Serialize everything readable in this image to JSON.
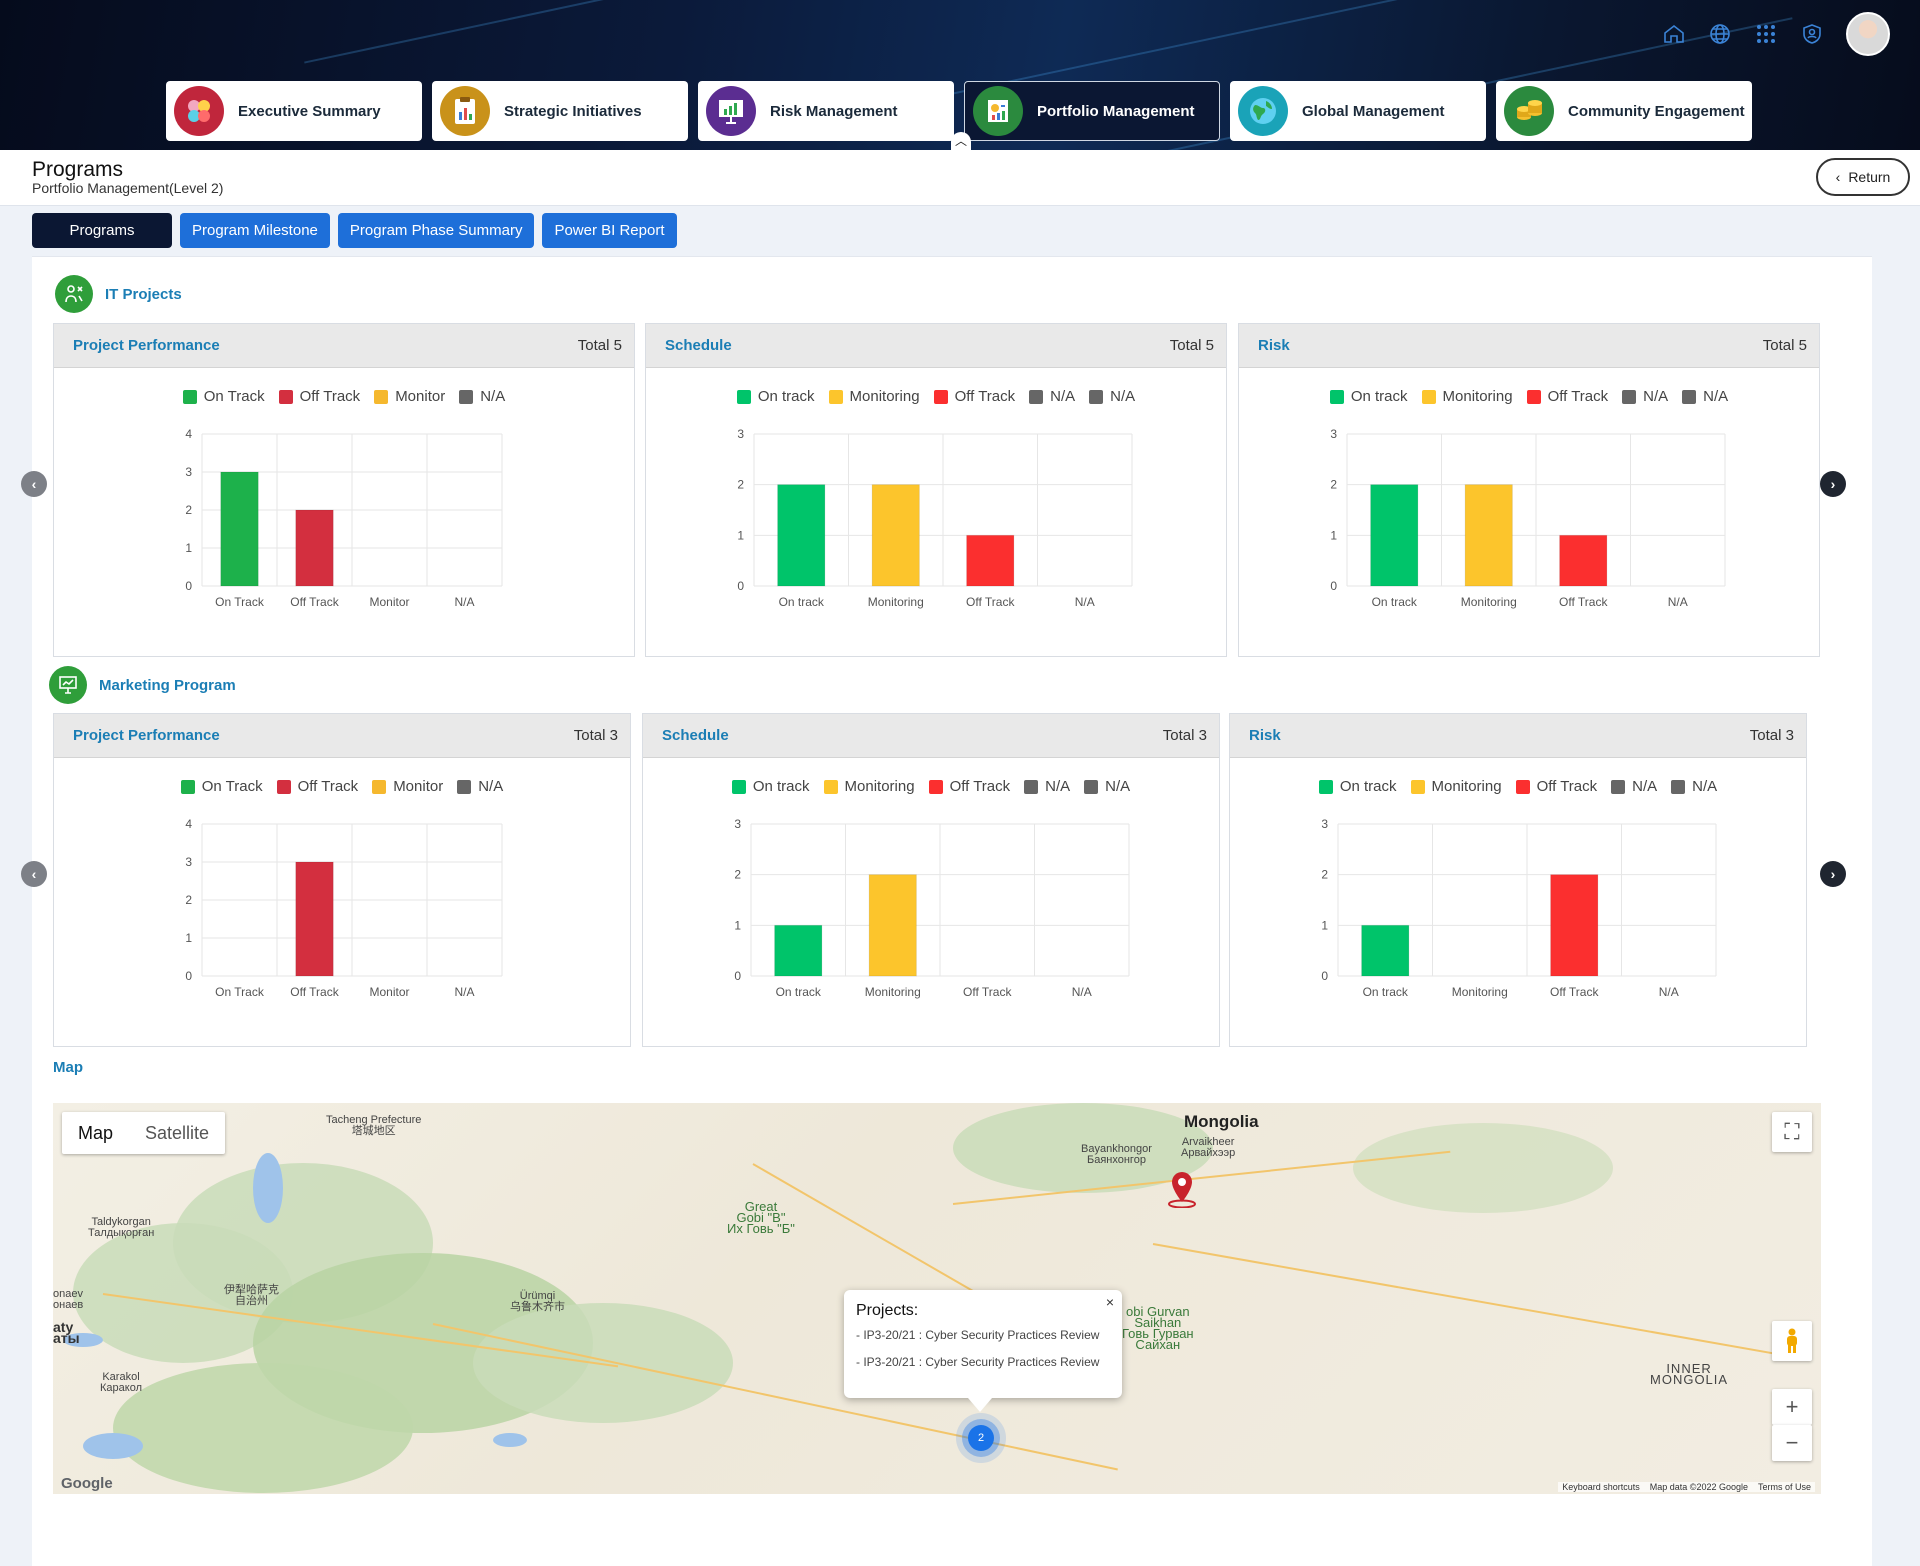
{
  "header": {
    "tabs": [
      {
        "label": "Executive Summary",
        "icon": "apps-cluster-icon",
        "color": "#c0263c"
      },
      {
        "label": "Strategic Initiatives",
        "icon": "report-clipboard-icon",
        "color": "#c9921a"
      },
      {
        "label": "Risk Management",
        "icon": "presentation-chart-icon",
        "color": "#5b2d91"
      },
      {
        "label": "Portfolio Management",
        "icon": "portfolio-chart-icon",
        "color": "#2b8a3e",
        "active": true
      },
      {
        "label": "Global Management",
        "icon": "globe-icon",
        "color": "#1aa3b8"
      },
      {
        "label": "Community Engagement",
        "icon": "coins-icon",
        "color": "#2b8a3e"
      }
    ]
  },
  "page": {
    "title": "Programs",
    "subtitle": "Portfolio Management(Level 2)",
    "return_label": "Return"
  },
  "subnav": [
    "Programs",
    "Program Milestone",
    "Program Phase Summary",
    "Power BI Report"
  ],
  "sections": [
    {
      "title": "IT Projects",
      "cards": [
        {
          "title": "Project Performance",
          "total": "Total 5"
        },
        {
          "title": "Schedule",
          "total": "Total 5"
        },
        {
          "title": "Risk",
          "total": "Total 5"
        }
      ]
    },
    {
      "title": "Marketing Program",
      "cards": [
        {
          "title": "Project Performance",
          "total": "Total 3"
        },
        {
          "title": "Schedule",
          "total": "Total 3"
        },
        {
          "title": "Risk",
          "total": "Total 3"
        }
      ]
    }
  ],
  "chart_data": [
    {
      "type": "bar",
      "categories": [
        "On Track",
        "Off Track",
        "Monitor",
        "N/A"
      ],
      "values": [
        3,
        2,
        0,
        0
      ],
      "ylim": [
        0,
        4
      ],
      "legend": [
        "On Track",
        "Off Track",
        "Monitor",
        "N/A"
      ],
      "legend_colors": [
        "#1db14b",
        "#d32f3f",
        "#f5b82e",
        "#666666"
      ],
      "bar_colors": [
        "#1db14b",
        "#d32f3f",
        "#f5b82e",
        "#666666"
      ]
    },
    {
      "type": "bar",
      "categories": [
        "On track",
        "Monitoring",
        "Off Track",
        "N/A"
      ],
      "values": [
        2,
        2,
        1,
        0
      ],
      "ylim": [
        0,
        3
      ],
      "legend": [
        "On track",
        "Monitoring",
        "Off Track",
        "N/A",
        "N/A"
      ],
      "legend_colors": [
        "#00c46a",
        "#fcc52c",
        "#fb2f2f",
        "#666666",
        "#666666"
      ],
      "bar_colors": [
        "#00c46a",
        "#fcc52c",
        "#fb2f2f",
        "#666666"
      ]
    },
    {
      "type": "bar",
      "categories": [
        "On track",
        "Monitoring",
        "Off Track",
        "N/A"
      ],
      "values": [
        2,
        2,
        1,
        0
      ],
      "ylim": [
        0,
        3
      ],
      "legend": [
        "On track",
        "Monitoring",
        "Off Track",
        "N/A",
        "N/A"
      ],
      "legend_colors": [
        "#00c46a",
        "#fcc52c",
        "#fb2f2f",
        "#666666",
        "#666666"
      ],
      "bar_colors": [
        "#00c46a",
        "#fcc52c",
        "#fb2f2f",
        "#666666"
      ]
    },
    {
      "type": "bar",
      "categories": [
        "On Track",
        "Off Track",
        "Monitor",
        "N/A"
      ],
      "values": [
        0,
        3,
        0,
        0
      ],
      "ylim": [
        0,
        4
      ],
      "legend": [
        "On Track",
        "Off Track",
        "Monitor",
        "N/A"
      ],
      "legend_colors": [
        "#1db14b",
        "#d32f3f",
        "#f5b82e",
        "#666666"
      ],
      "bar_colors": [
        "#1db14b",
        "#d32f3f",
        "#f5b82e",
        "#666666"
      ]
    },
    {
      "type": "bar",
      "categories": [
        "On track",
        "Monitoring",
        "Off Track",
        "N/A"
      ],
      "values": [
        1,
        2,
        0,
        0
      ],
      "ylim": [
        0,
        3
      ],
      "legend": [
        "On track",
        "Monitoring",
        "Off Track",
        "N/A",
        "N/A"
      ],
      "legend_colors": [
        "#00c46a",
        "#fcc52c",
        "#fb2f2f",
        "#666666",
        "#666666"
      ],
      "bar_colors": [
        "#00c46a",
        "#fcc52c",
        "#fb2f2f",
        "#666666"
      ]
    },
    {
      "type": "bar",
      "categories": [
        "On track",
        "Monitoring",
        "Off Track",
        "N/A"
      ],
      "values": [
        1,
        0,
        2,
        0
      ],
      "ylim": [
        0,
        3
      ],
      "legend": [
        "On track",
        "Monitoring",
        "Off Track",
        "N/A",
        "N/A"
      ],
      "legend_colors": [
        "#00c46a",
        "#fcc52c",
        "#fb2f2f",
        "#666666",
        "#666666"
      ],
      "bar_colors": [
        "#00c46a",
        "#fcc52c",
        "#fb2f2f",
        "#666666"
      ]
    }
  ],
  "map": {
    "label": "Map",
    "type_map": "Map",
    "type_satellite": "Satellite",
    "places": [
      "Tacheng Prefecture",
      "塔城地区",
      "Taldykorgan",
      "Талдықорған",
      "伊犁哈萨克",
      "自治州",
      "Ürümqi",
      "乌鲁木齐市",
      "Great",
      "Gobi \"B\"",
      "Их Говь \"Б\"",
      "Bayankhongor",
      "Баянхонгор",
      "Mongolia",
      "Arvaikheer",
      "Арвайхээр",
      "obi Gurvan",
      "Saikhan",
      "Говь Гурван",
      "Сайхан",
      "INNER",
      "MONGOLIA",
      "Karakol",
      "Каракол",
      "onaev",
      "онаев",
      "aty",
      "аты"
    ],
    "popup_title": "Projects:",
    "popup_items": [
      "- IP3-20/21 : Cyber Security Practices Review",
      "- IP3-20/21 : Cyber Security Practices Review"
    ],
    "popup_close": "×",
    "cluster_count": "2",
    "footer": [
      "Keyboard shortcuts",
      "Map data ©2022 Google",
      "Terms of Use"
    ],
    "logo": "Google"
  }
}
